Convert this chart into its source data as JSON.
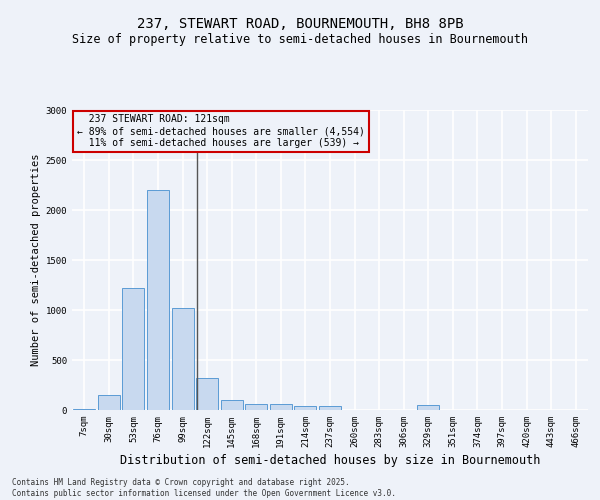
{
  "title1": "237, STEWART ROAD, BOURNEMOUTH, BH8 8PB",
  "title2": "Size of property relative to semi-detached houses in Bournemouth",
  "xlabel": "Distribution of semi-detached houses by size in Bournemouth",
  "ylabel": "Number of semi-detached properties",
  "categories": [
    "7sqm",
    "30sqm",
    "53sqm",
    "76sqm",
    "99sqm",
    "122sqm",
    "145sqm",
    "168sqm",
    "191sqm",
    "214sqm",
    "237sqm",
    "260sqm",
    "283sqm",
    "306sqm",
    "329sqm",
    "351sqm",
    "374sqm",
    "397sqm",
    "420sqm",
    "443sqm",
    "466sqm"
  ],
  "values": [
    10,
    150,
    1220,
    2200,
    1020,
    320,
    100,
    62,
    62,
    42,
    42,
    0,
    0,
    0,
    50,
    0,
    0,
    0,
    0,
    0,
    0
  ],
  "bar_color": "#c8d9ef",
  "bar_edge_color": "#5b9bd5",
  "vline_x_index": 4.575,
  "vline_color": "#555555",
  "property_label": "237 STEWART ROAD: 121sqm",
  "smaller_pct": "89%",
  "smaller_count": "4,554",
  "larger_pct": "11%",
  "larger_count": "539",
  "annotation_box_color": "#cc0000",
  "ylim": [
    0,
    3000
  ],
  "yticks": [
    0,
    500,
    1000,
    1500,
    2000,
    2500,
    3000
  ],
  "footer1": "Contains HM Land Registry data © Crown copyright and database right 2025.",
  "footer2": "Contains public sector information licensed under the Open Government Licence v3.0.",
  "bg_color": "#eef2f9",
  "grid_color": "#ffffff",
  "title1_fontsize": 10,
  "title2_fontsize": 8.5,
  "ylabel_fontsize": 7.5,
  "xlabel_fontsize": 8.5,
  "tick_fontsize": 6.5,
  "ann_fontsize": 7,
  "footer_fontsize": 5.5
}
